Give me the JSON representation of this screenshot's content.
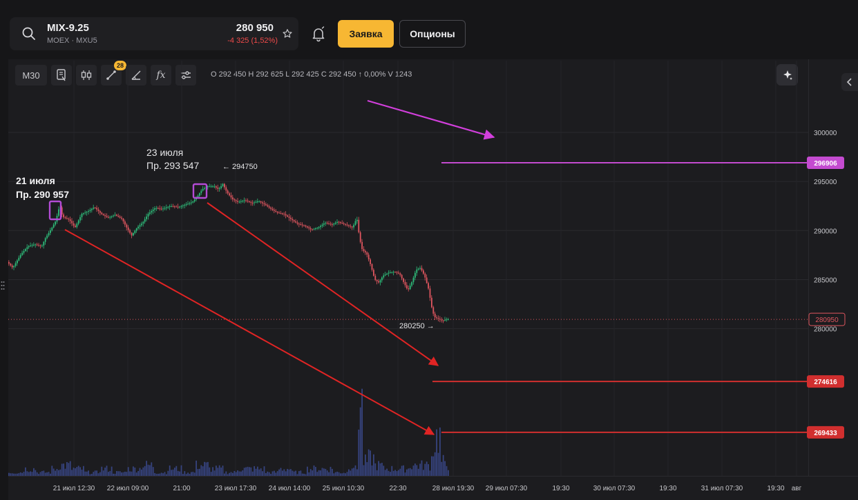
{
  "ticker": {
    "symbol": "MIX-9.25",
    "exchange": "MOEX · MXU5",
    "price": "280 950",
    "change": "-4 325 (1,52%)"
  },
  "toolbar": {
    "order_label": "Заявка",
    "options_label": "Опционы",
    "timeframe": "M30",
    "drawings_badge": "28",
    "fx_label": "fx"
  },
  "ohlc_text": "O 292 450  H 292 625  L 292 425  C 292 450  ↑ 0,00%  V 1243",
  "annotations": {
    "note_jul21_date": "21 июля",
    "note_jul21_price": "Пр. 290 957",
    "note_jul23_date": "23 июля",
    "note_jul23_price": "Пр. 293 547",
    "high_label": "← 294750",
    "low_label": "280250 →"
  },
  "chart_data": {
    "type": "candlestick",
    "y_ticks": [
      "300000",
      "295000",
      "290000",
      "285000",
      "280000"
    ],
    "y_tick_values": [
      300000,
      295000,
      290000,
      285000,
      280000
    ],
    "y_range": [
      265000,
      304500
    ],
    "x_ticks": [
      "21 июл 12:30",
      "22 июл 09:00",
      "21:00",
      "23 июл 17:30",
      "24 июл 14:00",
      "25 июл 10:30",
      "22:30",
      "28 июл 19:30",
      "29 июл 07:30",
      "19:30",
      "30 июл 07:30",
      "19:30",
      "31 июл 07:30",
      "19:30",
      "авг"
    ],
    "current_price": 280950,
    "current_price_label": "280950",
    "levels": [
      {
        "label": "296906",
        "value": 296906,
        "color": "#c44bd0"
      },
      {
        "label": "274616",
        "value": 274616,
        "color": "#d12f2f"
      },
      {
        "label": "269433",
        "value": 269433,
        "color": "#d12f2f"
      }
    ],
    "price_path": [
      [
        0,
        286800
      ],
      [
        8,
        286200
      ],
      [
        20,
        287600
      ],
      [
        30,
        288400
      ],
      [
        40,
        288600
      ],
      [
        50,
        288400
      ],
      [
        55,
        289200
      ],
      [
        64,
        290200
      ],
      [
        70,
        290957
      ],
      [
        76,
        292600
      ],
      [
        80,
        291400
      ],
      [
        90,
        291100
      ],
      [
        98,
        290300
      ],
      [
        108,
        291700
      ],
      [
        118,
        292000
      ],
      [
        126,
        292400
      ],
      [
        136,
        291700
      ],
      [
        146,
        291300
      ],
      [
        156,
        291600
      ],
      [
        166,
        291200
      ],
      [
        172,
        290400
      ],
      [
        180,
        289500
      ],
      [
        188,
        290300
      ],
      [
        196,
        290800
      ],
      [
        204,
        291700
      ],
      [
        214,
        292300
      ],
      [
        224,
        292200
      ],
      [
        236,
        292500
      ],
      [
        248,
        292400
      ],
      [
        260,
        292700
      ],
      [
        268,
        292900
      ],
      [
        276,
        293547
      ],
      [
        282,
        294200
      ],
      [
        290,
        294500
      ],
      [
        300,
        294500
      ],
      [
        306,
        294200
      ],
      [
        312,
        294750
      ],
      [
        318,
        293900
      ],
      [
        326,
        293200
      ],
      [
        334,
        292900
      ],
      [
        344,
        293100
      ],
      [
        354,
        292800
      ],
      [
        364,
        293000
      ],
      [
        374,
        292600
      ],
      [
        384,
        292100
      ],
      [
        392,
        291800
      ],
      [
        400,
        291700
      ],
      [
        410,
        291200
      ],
      [
        420,
        290700
      ],
      [
        430,
        290500
      ],
      [
        440,
        290100
      ],
      [
        450,
        290300
      ],
      [
        460,
        290800
      ],
      [
        470,
        290600
      ],
      [
        478,
        290900
      ],
      [
        486,
        290700
      ],
      [
        494,
        290500
      ],
      [
        500,
        290300
      ],
      [
        506,
        291300
      ],
      [
        510,
        289200
      ],
      [
        514,
        288000
      ],
      [
        520,
        287700
      ],
      [
        526,
        286500
      ],
      [
        532,
        285000
      ],
      [
        538,
        284700
      ],
      [
        544,
        285400
      ],
      [
        552,
        285700
      ],
      [
        560,
        285800
      ],
      [
        568,
        285600
      ],
      [
        574,
        284700
      ],
      [
        580,
        283900
      ],
      [
        586,
        284800
      ],
      [
        592,
        286000
      ],
      [
        598,
        286200
      ],
      [
        604,
        285400
      ],
      [
        610,
        284000
      ],
      [
        614,
        282300
      ],
      [
        618,
        281200
      ],
      [
        624,
        281000
      ],
      [
        630,
        280800
      ],
      [
        636,
        280950
      ]
    ],
    "volume": [
      [
        0,
        1
      ],
      [
        20,
        2
      ],
      [
        40,
        1
      ],
      [
        60,
        2
      ],
      [
        70,
        3
      ],
      [
        90,
        2
      ],
      [
        110,
        1
      ],
      [
        130,
        2
      ],
      [
        150,
        1
      ],
      [
        170,
        2
      ],
      [
        190,
        3
      ],
      [
        210,
        1
      ],
      [
        230,
        2
      ],
      [
        250,
        1
      ],
      [
        270,
        3
      ],
      [
        290,
        2
      ],
      [
        310,
        1
      ],
      [
        330,
        2
      ],
      [
        350,
        2
      ],
      [
        370,
        1
      ],
      [
        390,
        2
      ],
      [
        410,
        1
      ],
      [
        430,
        2
      ],
      [
        450,
        2
      ],
      [
        470,
        1
      ],
      [
        490,
        3
      ],
      [
        500,
        2
      ],
      [
        506,
        20
      ],
      [
        512,
        4
      ],
      [
        520,
        5
      ],
      [
        530,
        3
      ],
      [
        540,
        2
      ],
      [
        560,
        2
      ],
      [
        580,
        3
      ],
      [
        600,
        3
      ],
      [
        610,
        5
      ],
      [
        614,
        9
      ],
      [
        618,
        11
      ],
      [
        624,
        4
      ],
      [
        630,
        3
      ]
    ]
  }
}
